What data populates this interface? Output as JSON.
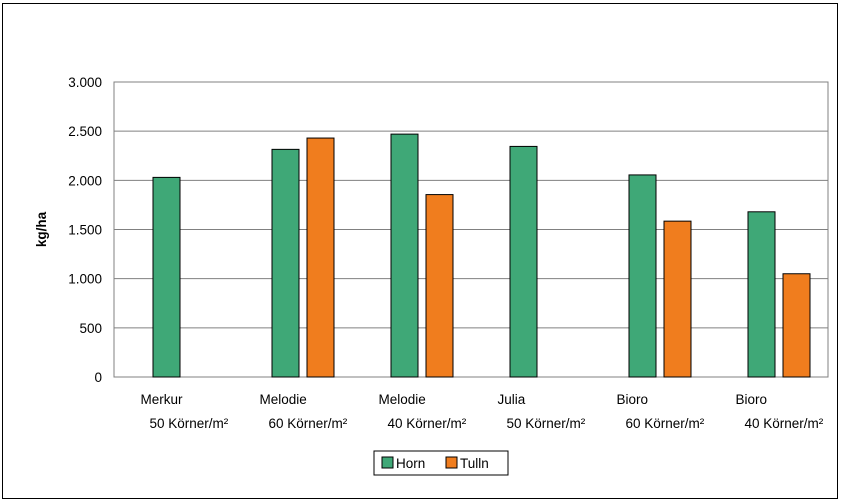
{
  "chart_data": {
    "type": "bar",
    "ylabel": "kg/ha",
    "xlabel": "",
    "ylim": [
      0,
      3000
    ],
    "y_ticks": [
      0,
      500,
      1000,
      1500,
      2000,
      2500,
      3000
    ],
    "y_tick_labels": [
      "0",
      "500",
      "1.000",
      "1.500",
      "2.000",
      "2.500",
      "3.000"
    ],
    "grid": true,
    "legend_position": "bottom",
    "categories": [
      {
        "line1": "Merkur",
        "line2": "50 Körner/m²"
      },
      {
        "line1": "Melodie",
        "line2": "60 Körner/m²"
      },
      {
        "line1": "Melodie",
        "line2": "40 Körner/m²"
      },
      {
        "line1": "Julia",
        "line2": "50 Körner/m²"
      },
      {
        "line1": "Bioro",
        "line2": "60 Körner/m²"
      },
      {
        "line1": "Bioro",
        "line2": "40 Körner/m²"
      }
    ],
    "series": [
      {
        "name": "Horn",
        "color": "#3fa877",
        "values": [
          2030,
          2315,
          2470,
          2345,
          2055,
          1680
        ]
      },
      {
        "name": "Tulln",
        "color": "#f07d1e",
        "values": [
          null,
          2430,
          1855,
          null,
          1585,
          1050
        ]
      }
    ]
  }
}
